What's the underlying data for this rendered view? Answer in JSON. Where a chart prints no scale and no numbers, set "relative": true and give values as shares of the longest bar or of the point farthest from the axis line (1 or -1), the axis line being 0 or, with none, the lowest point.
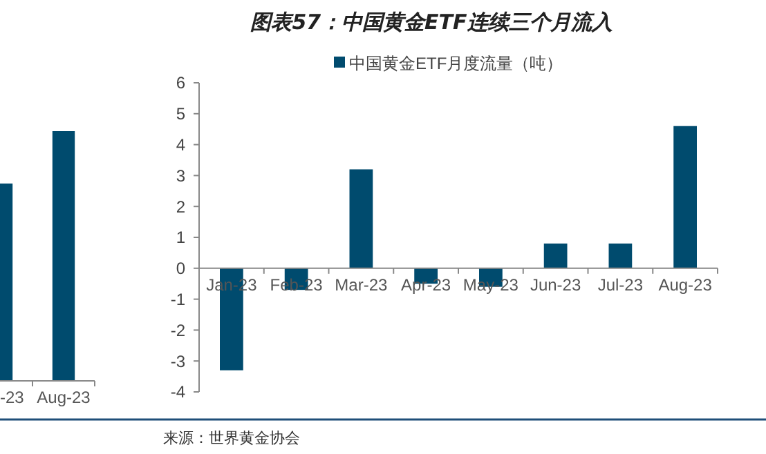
{
  "chart_data": [
    {
      "type": "bar",
      "relative": true,
      "categories": [
        "-23",
        "Aug-23"
      ],
      "series": [
        {
          "color": "#004b6e",
          "values": [
            0.79,
            1
          ]
        }
      ]
    },
    {
      "type": "bar",
      "title": "图表57：中国黄金ETF连续三个月流入",
      "categories": [
        "Jan-23",
        "Feb-23",
        "Mar-23",
        "Apr-23",
        "May-23",
        "Jun-23",
        "Jul-23",
        "Aug-23"
      ],
      "series": [
        {
          "name": "中国黄金ETF月度流量（吨）",
          "color": "#004b6e",
          "values": [
            -3.3,
            -0.7,
            3.2,
            -0.5,
            -0.6,
            0.8,
            0.8,
            4.6
          ]
        }
      ],
      "ylim": [
        -4,
        6
      ],
      "yticks": [
        -4,
        -3,
        -2,
        -1,
        0,
        1,
        2,
        3,
        4,
        5,
        6
      ],
      "legend": "top",
      "annotations": [
        "来源：世界黄金协会"
      ]
    }
  ]
}
